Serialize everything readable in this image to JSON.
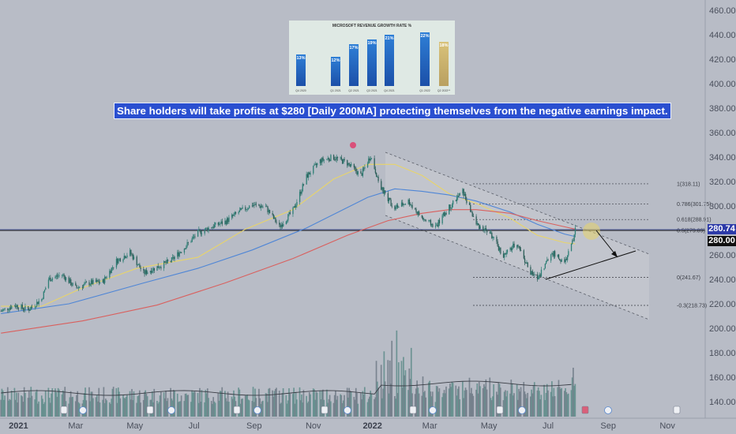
{
  "headline": "Share holders will take profits at $280 [Daily 200MA] protecting themselves from the negative earnings impact.",
  "inset": {
    "title": "MICROSOFT REVENUE GROWTH RATE %",
    "bars": [
      {
        "label": "13%",
        "value": 13,
        "quarter": "Q4 2020",
        "estimate": false
      },
      {
        "label": "12%",
        "value": 12,
        "quarter": "Q1 2021",
        "estimate": false
      },
      {
        "label": "17%",
        "value": 17,
        "quarter": "Q2 2021",
        "estimate": false
      },
      {
        "label": "19%",
        "value": 19,
        "quarter": "Q3 2021",
        "estimate": false
      },
      {
        "label": "21%",
        "value": 21,
        "quarter": "Q4 2021",
        "estimate": false
      },
      {
        "label": "22%",
        "value": 22,
        "quarter": "Q1 2022",
        "estimate": false
      },
      {
        "label": "18%",
        "value": 18,
        "quarter": "Q2 2022**",
        "estimate": true
      }
    ]
  },
  "price_tags": {
    "current": {
      "text": "280.74",
      "value": 280.74,
      "color": "#2c3aa8"
    },
    "level": {
      "text": "280.00",
      "value": 280.0,
      "color": "#101010"
    }
  },
  "fib_levels": [
    {
      "label": "1(318.11)",
      "value": 318.11
    },
    {
      "label": "0.786(301.75)",
      "value": 301.75
    },
    {
      "label": "0.618(288.91)",
      "value": 288.91
    },
    {
      "label": "0.5(279.89)",
      "value": 279.89
    },
    {
      "label": "0(241.67)",
      "value": 241.67
    },
    {
      "label": "-0.3(218.73)",
      "value": 218.73
    }
  ],
  "chart_data": {
    "type": "line",
    "price_axis_ticks": [
      460,
      440,
      420,
      400,
      380,
      360,
      340,
      320,
      300,
      280,
      260,
      240,
      220,
      200,
      180,
      160,
      140
    ],
    "price_axis_labels": [
      "460.00",
      "440.00",
      "420.00",
      "400.00",
      "380.00",
      "360.00",
      "340.00",
      "320.00",
      "300.00",
      "280.00",
      "260.00",
      "240.00",
      "220.00",
      "200.00",
      "180.00",
      "160.00",
      "140.00"
    ],
    "ylim": [
      131,
      466
    ],
    "time_labels": [
      "2021",
      "Mar",
      "May",
      "Jul",
      "Sep",
      "Nov",
      "2022",
      "Mar",
      "May",
      "Jul",
      "Sep",
      "Nov"
    ],
    "time_values": [
      "2021-01",
      "2021-03",
      "2021-05",
      "2021-07",
      "2021-09",
      "2021-11",
      "2022-01",
      "2022-03",
      "2022-05",
      "2022-07",
      "2022-09",
      "2022-11"
    ],
    "xlim": [
      "2020-12-13",
      "2022-12-10"
    ],
    "series": [
      {
        "values": [
          [
            "2020-12-14",
            214
          ],
          [
            "2020-12-28",
            219
          ],
          [
            "2021-01-11",
            215
          ],
          [
            "2021-01-25",
            224
          ],
          [
            "2021-02-01",
            240
          ],
          [
            "2021-02-15",
            244
          ],
          [
            "2021-03-01",
            233
          ],
          [
            "2021-03-15",
            237
          ],
          [
            "2021-03-29",
            238
          ],
          [
            "2021-04-12",
            255
          ],
          [
            "2021-04-26",
            262
          ],
          [
            "2021-05-10",
            245
          ],
          [
            "2021-05-24",
            250
          ],
          [
            "2021-06-07",
            255
          ],
          [
            "2021-06-21",
            266
          ],
          [
            "2021-07-05",
            278
          ],
          [
            "2021-07-19",
            283
          ],
          [
            "2021-08-02",
            287
          ],
          [
            "2021-08-16",
            295
          ],
          [
            "2021-08-30",
            301
          ],
          [
            "2021-09-13",
            299
          ],
          [
            "2021-09-27",
            283
          ],
          [
            "2021-10-11",
            296
          ],
          [
            "2021-10-25",
            324
          ],
          [
            "2021-11-08",
            337
          ],
          [
            "2021-11-22",
            340
          ],
          [
            "2021-12-06",
            335
          ],
          [
            "2021-12-20",
            325
          ],
          [
            "2021-12-30",
            341
          ],
          [
            "2022-01-10",
            314
          ],
          [
            "2022-01-24",
            298
          ],
          [
            "2022-02-07",
            304
          ],
          [
            "2022-02-21",
            290
          ],
          [
            "2022-03-07",
            283
          ],
          [
            "2022-03-21",
            299
          ],
          [
            "2022-04-04",
            312
          ],
          [
            "2022-04-18",
            285
          ],
          [
            "2022-05-02",
            278
          ],
          [
            "2022-05-16",
            259
          ],
          [
            "2022-05-30",
            270
          ],
          [
            "2022-06-13",
            245
          ],
          [
            "2022-06-20",
            241
          ],
          [
            "2022-07-05",
            262
          ],
          [
            "2022-07-18",
            253
          ],
          [
            "2022-07-27",
            272
          ],
          [
            "2022-07-29",
            280.74
          ]
        ]
      },
      {
        "values": [
          [
            "2020-12-14",
            218
          ],
          [
            "2021-01-25",
            218
          ],
          [
            "2021-03-08",
            233
          ],
          [
            "2021-05-03",
            249
          ],
          [
            "2021-07-05",
            258
          ],
          [
            "2021-08-23",
            281
          ],
          [
            "2021-10-11",
            297
          ],
          [
            "2021-11-22",
            322
          ],
          [
            "2021-12-27",
            334
          ],
          [
            "2022-01-24",
            334
          ],
          [
            "2022-02-21",
            325
          ],
          [
            "2022-03-21",
            310
          ],
          [
            "2022-04-18",
            302
          ],
          [
            "2022-05-23",
            290
          ],
          [
            "2022-06-20",
            276
          ],
          [
            "2022-07-18",
            270
          ],
          [
            "2022-07-29",
            269
          ]
        ]
      },
      {
        "values": [
          [
            "2020-12-14",
            212
          ],
          [
            "2021-02-22",
            220
          ],
          [
            "2021-05-10",
            237
          ],
          [
            "2021-07-05",
            249
          ],
          [
            "2021-08-30",
            264
          ],
          [
            "2021-10-25",
            282
          ],
          [
            "2021-12-27",
            307
          ],
          [
            "2022-01-24",
            314
          ],
          [
            "2022-02-21",
            312
          ],
          [
            "2022-03-21",
            309
          ],
          [
            "2022-04-18",
            304
          ],
          [
            "2022-05-23",
            295
          ],
          [
            "2022-06-20",
            285
          ],
          [
            "2022-07-18",
            277
          ],
          [
            "2022-07-29",
            275
          ]
        ]
      },
      {
        "values": [
          [
            "2020-12-14",
            196
          ],
          [
            "2021-03-08",
            206
          ],
          [
            "2021-05-24",
            219
          ],
          [
            "2021-08-02",
            237
          ],
          [
            "2021-10-11",
            257
          ],
          [
            "2021-12-06",
            276
          ],
          [
            "2022-01-17",
            288
          ],
          [
            "2022-02-21",
            294
          ],
          [
            "2022-03-21",
            297
          ],
          [
            "2022-04-18",
            297
          ],
          [
            "2022-05-23",
            294
          ],
          [
            "2022-06-20",
            288
          ],
          [
            "2022-07-18",
            283
          ],
          [
            "2022-07-29",
            281
          ]
        ]
      }
    ],
    "colors": {
      "price": "#2f7f76",
      "ma50": "#e8d46a",
      "ma100": "#4f86d6",
      "ma200": "#d9605e",
      "volume": "#5e8c8a"
    },
    "grid": false
  }
}
